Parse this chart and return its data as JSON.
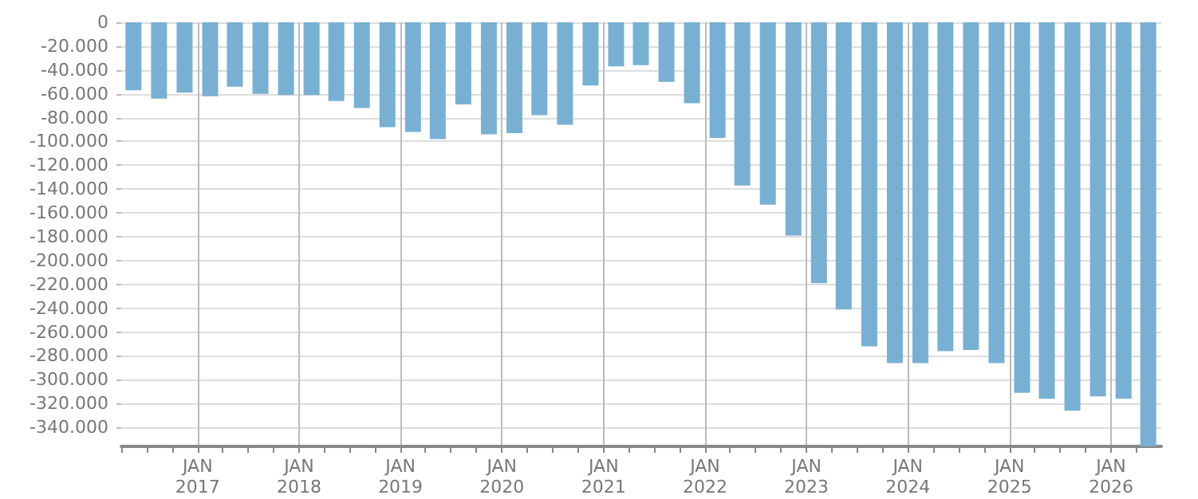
{
  "chart_data": {
    "type": "bar",
    "color": "#78b0d3",
    "grid": true,
    "x": [
      "2016-05-15",
      "2016-08-15",
      "2016-11-15",
      "2017-02-15",
      "2017-05-15",
      "2017-08-15",
      "2017-11-15",
      "2018-02-15",
      "2018-05-15",
      "2018-08-15",
      "2018-11-15",
      "2019-02-15",
      "2019-05-15",
      "2019-08-15",
      "2019-11-15",
      "2020-02-15",
      "2020-05-15",
      "2020-08-15",
      "2020-11-15",
      "2021-02-15",
      "2021-05-15",
      "2021-08-15",
      "2021-11-15",
      "2022-02-15",
      "2022-05-15",
      "2022-08-15",
      "2022-11-15",
      "2023-02-15",
      "2023-05-15",
      "2023-08-15",
      "2023-11-15",
      "2024-02-15",
      "2024-05-15",
      "2024-08-15",
      "2024-11-15",
      "2025-02-15",
      "2025-05-15",
      "2025-08-15",
      "2025-11-15",
      "2026-02-15",
      "2026-05-15"
    ],
    "values": [
      -57000,
      -64000,
      -59000,
      -62000,
      -54000,
      -60000,
      -61000,
      -61000,
      -66000,
      -72000,
      -88000,
      -92000,
      -98000,
      -69000,
      -94000,
      -93000,
      -78000,
      -86000,
      -53000,
      -37000,
      -36000,
      -50000,
      -68000,
      -97000,
      -137000,
      -153000,
      -179000,
      -219000,
      -241000,
      -272000,
      -286000,
      -286000,
      -276000,
      -275000,
      -286000,
      -311000,
      -316000,
      -326000,
      -314000,
      -316000,
      -356000
    ],
    "xlim": [
      "2016-04-01",
      "2026-07-01"
    ],
    "xticks": [
      {
        "value": "2016-04-01",
        "label": null
      },
      {
        "value": "2016-07-01",
        "label": null
      },
      {
        "value": "2016-10-01",
        "label": null
      },
      {
        "value": "2017-01-01",
        "label": "JAN\n2017"
      },
      {
        "value": "2017-04-01",
        "label": null
      },
      {
        "value": "2017-07-01",
        "label": null
      },
      {
        "value": "2017-10-01",
        "label": null
      },
      {
        "value": "2018-01-01",
        "label": "JAN\n2018"
      },
      {
        "value": "2018-04-01",
        "label": null
      },
      {
        "value": "2018-07-01",
        "label": null
      },
      {
        "value": "2018-10-01",
        "label": null
      },
      {
        "value": "2019-01-01",
        "label": "JAN\n2019"
      },
      {
        "value": "2019-04-01",
        "label": null
      },
      {
        "value": "2019-07-01",
        "label": null
      },
      {
        "value": "2019-10-01",
        "label": null
      },
      {
        "value": "2020-01-01",
        "label": "JAN\n2020"
      },
      {
        "value": "2020-04-01",
        "label": null
      },
      {
        "value": "2020-07-01",
        "label": null
      },
      {
        "value": "2020-10-01",
        "label": null
      },
      {
        "value": "2021-01-01",
        "label": "JAN\n2021"
      },
      {
        "value": "2021-04-01",
        "label": null
      },
      {
        "value": "2021-07-01",
        "label": null
      },
      {
        "value": "2021-10-01",
        "label": null
      },
      {
        "value": "2022-01-01",
        "label": "JAN\n2022"
      },
      {
        "value": "2022-04-01",
        "label": null
      },
      {
        "value": "2022-07-01",
        "label": null
      },
      {
        "value": "2022-10-01",
        "label": null
      },
      {
        "value": "2023-01-01",
        "label": "JAN\n2023"
      },
      {
        "value": "2023-04-01",
        "label": null
      },
      {
        "value": "2023-07-01",
        "label": null
      },
      {
        "value": "2023-10-01",
        "label": null
      },
      {
        "value": "2024-01-01",
        "label": "JAN\n2024"
      },
      {
        "value": "2024-04-01",
        "label": null
      },
      {
        "value": "2024-07-01",
        "label": null
      },
      {
        "value": "2024-10-01",
        "label": null
      },
      {
        "value": "2025-01-01",
        "label": "JAN\n2025"
      },
      {
        "value": "2025-04-01",
        "label": null
      },
      {
        "value": "2025-07-01",
        "label": null
      },
      {
        "value": "2025-10-01",
        "label": null
      },
      {
        "value": "2026-01-01",
        "label": "JAN\n2026"
      },
      {
        "value": "2026-04-01",
        "label": null
      }
    ],
    "ylim": [
      -356000,
      0
    ],
    "yticks": [
      0,
      {
        "value": -20000,
        "label": "-20.000"
      },
      {
        "value": -40000,
        "label": "-40.000"
      },
      {
        "value": -60000,
        "label": "-60.000"
      },
      {
        "value": -80000,
        "label": "-80.000"
      },
      {
        "value": -100000,
        "label": "-100.000"
      },
      {
        "value": -120000,
        "label": "-120.000"
      },
      {
        "value": -140000,
        "label": "-140.000"
      },
      {
        "value": -160000,
        "label": "-160.000"
      },
      {
        "value": -180000,
        "label": "-180.000"
      },
      {
        "value": -200000,
        "label": "-200.000"
      },
      {
        "value": -220000,
        "label": "-220.000"
      },
      {
        "value": -240000,
        "label": "-240.000"
      },
      {
        "value": -260000,
        "label": "-260.000"
      },
      {
        "value": -280000,
        "label": "-280.000"
      },
      {
        "value": -300000,
        "label": "-300.000"
      },
      {
        "value": -320000,
        "label": "-320.000"
      },
      {
        "value": -340000,
        "label": "-340.000"
      }
    ]
  }
}
